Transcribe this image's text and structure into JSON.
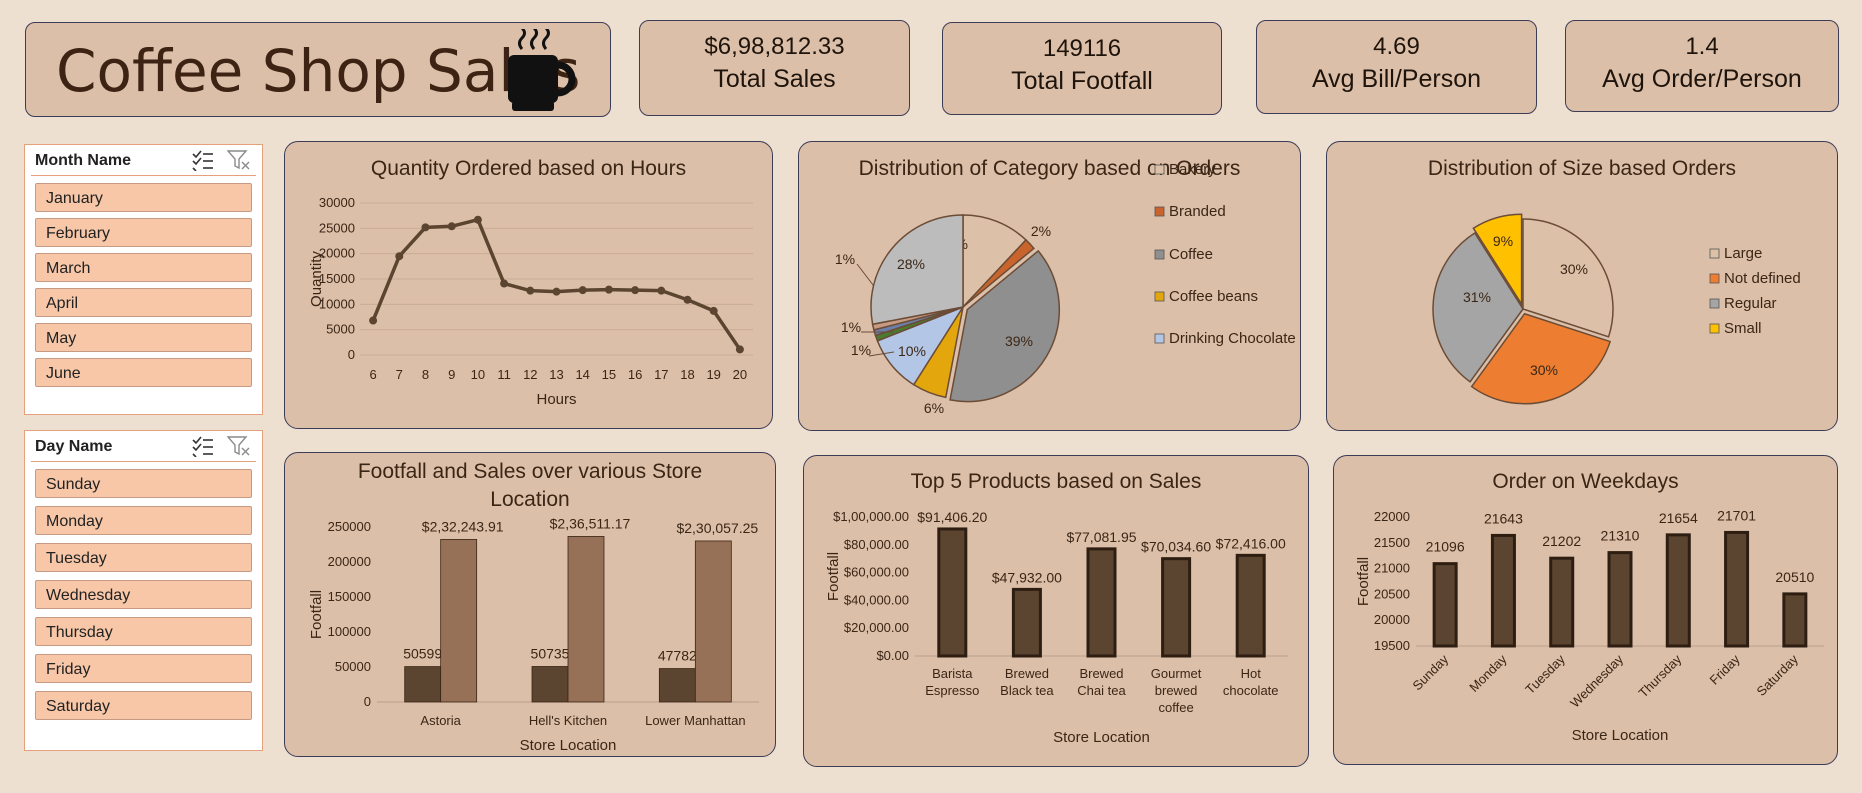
{
  "header": {
    "title": "Coffee Shop Sales"
  },
  "kpis": [
    {
      "value": "$6,98,812.33",
      "label": "Total Sales"
    },
    {
      "value": "149116",
      "label": "Total Footfall"
    },
    {
      "value": "4.69",
      "label": "Avg Bill/Person"
    },
    {
      "value": "1.4",
      "label": "Avg Order/Person"
    }
  ],
  "slicers": {
    "month": {
      "title": "Month Name",
      "items": [
        "January",
        "February",
        "March",
        "April",
        "May",
        "June"
      ]
    },
    "day": {
      "title": "Day Name",
      "items": [
        "Sunday",
        "Monday",
        "Tuesday",
        "Wednesday",
        "Thursday",
        "Friday",
        "Saturday"
      ]
    }
  },
  "icons": [
    "coffee-cup-icon",
    "multi-select-icon",
    "clear-filter-icon"
  ],
  "colors": {
    "background": "#ede0d1",
    "panel": "#dcbfa8",
    "dark_brown": "#5b4430",
    "light_brown": "#977157",
    "slicer_item": "#f7c7a8"
  },
  "chart_data": [
    {
      "type": "line",
      "title": "Quantity Ordered based on Hours",
      "xlabel": "Hours",
      "ylabel": "Quantity",
      "x": [
        6,
        7,
        8,
        9,
        10,
        11,
        12,
        13,
        14,
        15,
        16,
        17,
        18,
        19,
        20
      ],
      "values": [
        6800,
        19500,
        25200,
        25400,
        26700,
        14100,
        12700,
        12500,
        12800,
        12900,
        12800,
        12700,
        10900,
        8700,
        1100
      ],
      "yticks": [
        "0",
        "5000",
        "10000",
        "15000",
        "20000",
        "25000",
        "30000"
      ],
      "ylim": [
        0,
        30000
      ],
      "grid": true
    },
    {
      "type": "pie",
      "title": "Distribution of Category based on Orders",
      "legend_position": "right",
      "legend": [
        "Bakery",
        "Branded",
        "Coffee",
        "Coffee beans",
        "Drinking Chocolate"
      ],
      "slices": [
        {
          "name": "Bakery",
          "value": 12,
          "label": "12%",
          "color": "#ddc0a8"
        },
        {
          "name": "Branded",
          "value": 2,
          "label": "2%",
          "color": "#c9652c"
        },
        {
          "name": "Coffee",
          "value": 39,
          "label": "39%",
          "color": "#8f8f8f"
        },
        {
          "name": "Coffee beans",
          "value": 6,
          "label": "6%",
          "color": "#e3a60d"
        },
        {
          "name": "Drinking Chocolate",
          "value": 10,
          "label": "10%",
          "color": "#b4c6e6"
        },
        {
          "name": "",
          "value": 1,
          "label": "1%",
          "color": "#4a7a2e"
        },
        {
          "name": "",
          "value": 1,
          "label": "1%",
          "color": "#6b7fa8"
        },
        {
          "name": "",
          "value": 1,
          "label": "1%",
          "color": "#c79a82"
        },
        {
          "name": "",
          "value": 28,
          "label": "28%",
          "color": "#bcbcbc"
        }
      ]
    },
    {
      "type": "pie",
      "title": "Distribution of Size based Orders",
      "legend_position": "right",
      "legend": [
        "Large",
        "Not defined",
        "Regular",
        "Small"
      ],
      "slices": [
        {
          "name": "Large",
          "value": 30,
          "label": "30%",
          "color": "#ddc0a8"
        },
        {
          "name": "Not defined",
          "value": 30,
          "label": "30%",
          "color": "#ed7d31"
        },
        {
          "name": "Regular",
          "value": 31,
          "label": "31%",
          "color": "#a5a5a5"
        },
        {
          "name": "Small",
          "value": 9,
          "label": "9%",
          "color": "#ffc000"
        }
      ]
    },
    {
      "type": "bar",
      "title": "Footfall and Sales over various Store Location",
      "xlabel": "Store Location",
      "ylabel": "Footfall",
      "categories": [
        "Astoria",
        "Hell's Kitchen",
        "Lower Manhattan"
      ],
      "series": [
        {
          "values": [
            50599,
            50735,
            47782
          ],
          "labels": [
            "50599",
            "50735",
            "47782"
          ],
          "color": "#5b4430"
        },
        {
          "values": [
            232243.91,
            236511.17,
            230057.25
          ],
          "labels": [
            "$2,32,243.91",
            "$2,36,511.17",
            "$2,30,057.25"
          ],
          "color": "#977157"
        }
      ],
      "yticks": [
        "0",
        "50000",
        "100000",
        "150000",
        "200000",
        "250000"
      ],
      "ylim": [
        0,
        250000
      ]
    },
    {
      "type": "bar",
      "title": "Top 5 Products based on Sales",
      "xlabel": "Store Location",
      "ylabel": "Footfall",
      "categories": [
        [
          "Barista",
          "Espresso"
        ],
        [
          "Brewed",
          "Black tea"
        ],
        [
          "Brewed",
          "Chai tea"
        ],
        [
          "Gourmet",
          "brewed",
          "coffee"
        ],
        [
          "Hot",
          "chocolate"
        ]
      ],
      "values": [
        91406.2,
        47932.0,
        77081.95,
        70034.6,
        72416.0
      ],
      "labels": [
        "$91,406.20",
        "$47,932.00",
        "$77,081.95",
        "$70,034.60",
        "$72,416.00"
      ],
      "yticks": [
        "$0.00",
        "$20,000.00",
        "$40,000.00",
        "$60,000.00",
        "$80,000.00",
        "$1,00,000.00"
      ],
      "ylim": [
        0,
        100000
      ]
    },
    {
      "type": "bar",
      "title": "Order on Weekdays",
      "xlabel": "Store Location",
      "ylabel": "Footfall",
      "categories": [
        "Sunday",
        "Monday",
        "Tuesday",
        "Wednesday",
        "Thursday",
        "Friday",
        "Saturday"
      ],
      "values": [
        21096,
        21643,
        21202,
        21310,
        21654,
        21701,
        20510
      ],
      "labels": [
        "21096",
        "21643",
        "21202",
        "21310",
        "21654",
        "21701",
        "20510"
      ],
      "yticks": [
        "19500",
        "20000",
        "20500",
        "21000",
        "21500",
        "22000"
      ],
      "ylim": [
        19500,
        22000
      ]
    }
  ]
}
